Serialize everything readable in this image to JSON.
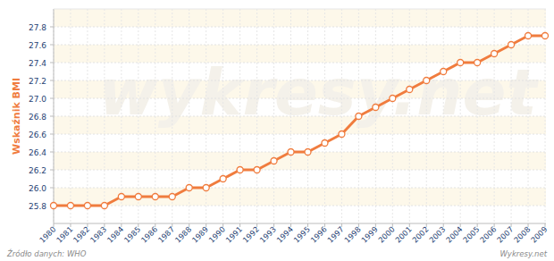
{
  "chart_data": {
    "type": "line",
    "y_label": "Wskaźnik BMI",
    "source": "Źródło danych: WHO",
    "credit": "Wykresy.net",
    "watermark": "wykresy.net",
    "categories": [
      "1980",
      "1981",
      "1982",
      "1983",
      "1984",
      "1985",
      "1986",
      "1987",
      "1988",
      "1989",
      "1990",
      "1991",
      "1992",
      "1993",
      "1994",
      "1995",
      "1996",
      "1997",
      "1998",
      "1999",
      "2000",
      "2001",
      "2002",
      "2003",
      "2004",
      "2005",
      "2006",
      "2007",
      "2008",
      "2009"
    ],
    "values": [
      25.8,
      25.8,
      25.8,
      25.8,
      25.9,
      25.9,
      25.9,
      25.9,
      26.0,
      26.0,
      26.1,
      26.2,
      26.2,
      26.3,
      26.4,
      26.4,
      26.5,
      26.6,
      26.8,
      26.9,
      27.0,
      27.1,
      27.2,
      27.3,
      27.4,
      27.4,
      27.5,
      27.6,
      27.7,
      27.7
    ],
    "color": "#f07c3e",
    "marker": "circle",
    "grid": true,
    "ylim": [
      25.6,
      28.0
    ],
    "yticks": [
      25.8,
      {
        "value": 26,
        "label": "26.0"
      },
      26.2,
      26.4,
      26.6,
      26.8,
      {
        "value": 27,
        "label": "27.0"
      },
      27.2,
      27.4,
      27.6,
      27.8
    ]
  }
}
